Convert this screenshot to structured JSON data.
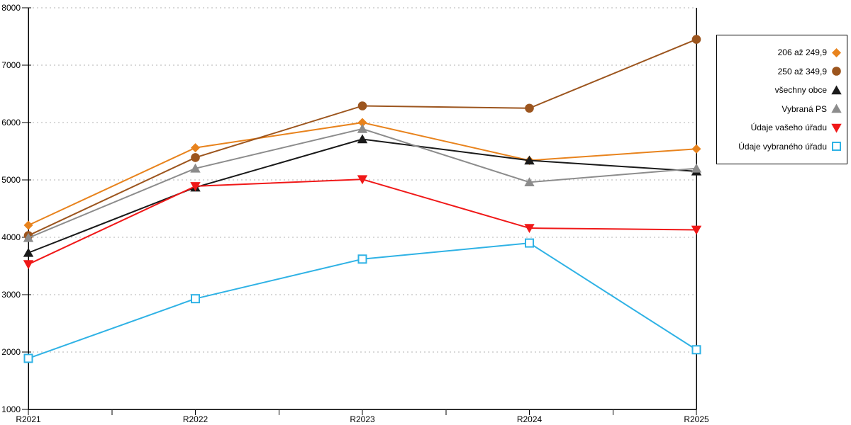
{
  "chart_data": {
    "type": "line",
    "title": "",
    "xlabel": "",
    "ylabel": "",
    "categories": [
      "R2021",
      "R2022",
      "R2023",
      "R2024",
      "R2025"
    ],
    "yticks": [
      1000,
      2000,
      3000,
      4000,
      5000,
      6000,
      7000,
      8000
    ],
    "ylim": [
      1000,
      8000
    ],
    "grid": "horizontal-dotted",
    "legend_position": "right-outside",
    "axis_color": "#000000",
    "gridline_color": "#b3b3b3",
    "series": [
      {
        "name": "206 až 249,9",
        "marker": "diamond",
        "color": "#e8831d",
        "values": [
          4210,
          5560,
          6000,
          5340,
          5540
        ]
      },
      {
        "name": "250 až 349,9",
        "marker": "circle",
        "color": "#9c551e",
        "values": [
          4030,
          5390,
          6290,
          6250,
          7450
        ]
      },
      {
        "name": "všechny obce",
        "marker": "triangle-up",
        "color": "#1a1a1a",
        "values": [
          3730,
          4870,
          5710,
          5340,
          5150
        ]
      },
      {
        "name": "Vybraná PS",
        "marker": "triangle-up",
        "color": "#8c8c8c",
        "values": [
          3990,
          5200,
          5890,
          4960,
          5200
        ]
      },
      {
        "name": "Údaje vašeho úřadu",
        "marker": "triangle-down",
        "color": "#f01818",
        "values": [
          3530,
          4890,
          5010,
          4160,
          4130
        ]
      },
      {
        "name": "Údaje vybraného úřadu",
        "marker": "square-open",
        "color": "#2fb2e5",
        "values": [
          1890,
          2930,
          3620,
          3900,
          2040
        ]
      }
    ]
  }
}
